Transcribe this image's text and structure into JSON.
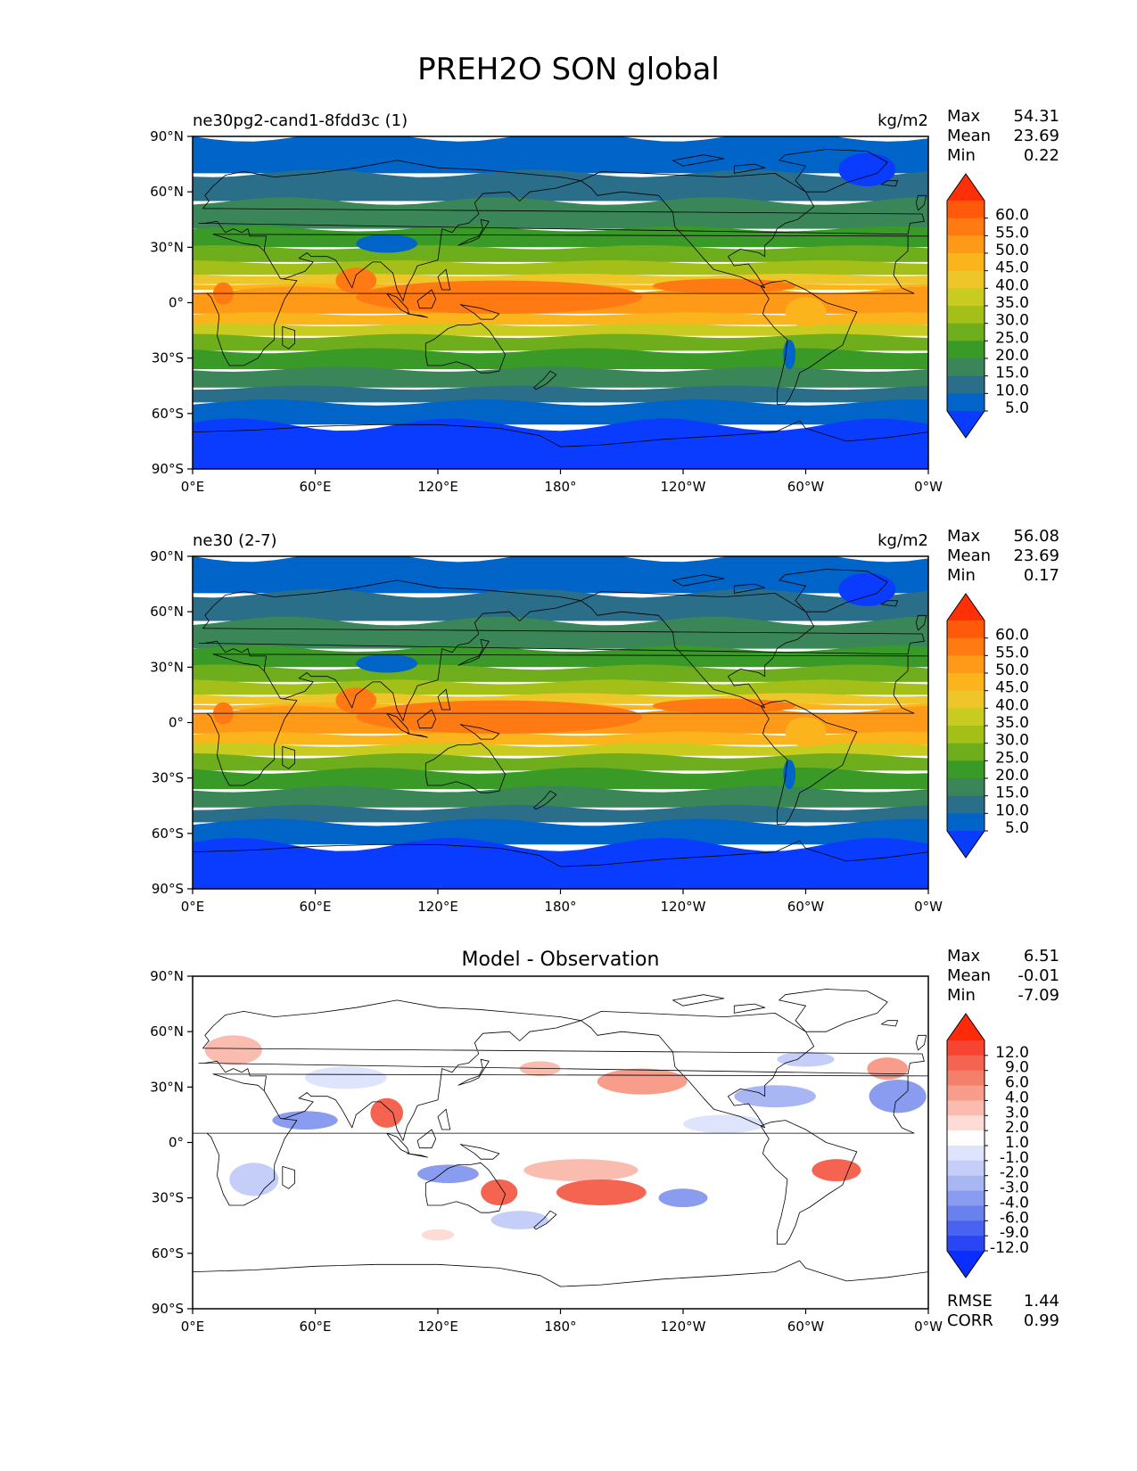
{
  "title": "PREH2O SON global",
  "x_ticks": [
    "0°E",
    "60°E",
    "120°E",
    "180°",
    "120°W",
    "60°W",
    "0°W"
  ],
  "y_ticks": [
    "90°N",
    "60°N",
    "30°N",
    "0°",
    "30°S",
    "60°S",
    "90°S"
  ],
  "panels": [
    {
      "name": "test-panel",
      "label": "ne30pg2-cand1-8fdd3c (1)",
      "units": "kg/m2",
      "center_title": "",
      "stats": [
        {
          "label": "Max",
          "value": "54.31"
        },
        {
          "label": "Mean",
          "value": "23.69"
        },
        {
          "label": "Min",
          "value": "0.22"
        }
      ],
      "colorbar_ticks": [
        "60.0",
        "55.0",
        "50.0",
        "45.0",
        "40.0",
        "35.0",
        "30.0",
        "25.0",
        "20.0",
        "15.0",
        "10.0",
        "5.0"
      ],
      "colorbar_colors": [
        "#ff3008",
        "#ff5a0a",
        "#ff7a12",
        "#ff9a18",
        "#fbb41c",
        "#eec62a",
        "#c8cc20",
        "#a4c018",
        "#6eae1c",
        "#3a9a28",
        "#3a8658",
        "#2a6e8a",
        "#0064c8",
        "#0a3cff"
      ],
      "footer": []
    },
    {
      "name": "ref-panel",
      "label": "ne30 (2-7)",
      "units": "kg/m2",
      "center_title": "",
      "stats": [
        {
          "label": "Max",
          "value": "56.08"
        },
        {
          "label": "Mean",
          "value": "23.69"
        },
        {
          "label": "Min",
          "value": "0.17"
        }
      ],
      "colorbar_ticks": [
        "60.0",
        "55.0",
        "50.0",
        "45.0",
        "40.0",
        "35.0",
        "30.0",
        "25.0",
        "20.0",
        "15.0",
        "10.0",
        "5.0"
      ],
      "colorbar_colors": [
        "#ff3008",
        "#ff5a0a",
        "#ff7a12",
        "#ff9a18",
        "#fbb41c",
        "#eec62a",
        "#c8cc20",
        "#a4c018",
        "#6eae1c",
        "#3a9a28",
        "#3a8658",
        "#2a6e8a",
        "#0064c8",
        "#0a3cff"
      ],
      "footer": []
    },
    {
      "name": "diff-panel",
      "label": "",
      "units": "",
      "center_title": "Model - Observation",
      "stats": [
        {
          "label": "Max",
          "value": "6.51"
        },
        {
          "label": "Mean",
          "value": "-0.01"
        },
        {
          "label": "Min",
          "value": "-7.09"
        }
      ],
      "colorbar_ticks": [
        "12.0",
        "9.0",
        "6.0",
        "4.0",
        "3.0",
        "2.0",
        "1.0",
        "-1.0",
        "-2.0",
        "-3.0",
        "-4.0",
        "-6.0",
        "-9.0",
        "-12.0"
      ],
      "colorbar_colors": [
        "#ff2a0a",
        "#f84432",
        "#f46450",
        "#f4806c",
        "#f89c8c",
        "#fbbcb0",
        "#fcdcd4",
        "#ffffff",
        "#dde4fb",
        "#c4cef8",
        "#a8b6f4",
        "#8a9cef",
        "#6a80ec",
        "#4a62f0",
        "#2a46f4",
        "#0a2eff"
      ],
      "footer": [
        {
          "label": "RMSE",
          "value": "1.44"
        },
        {
          "label": "CORR",
          "value": "0.99"
        }
      ]
    }
  ],
  "chart_data": [
    {
      "type": "heatmap",
      "title": "ne30pg2-cand1-8fdd3c (1)",
      "variable": "PREH2O",
      "season": "SON",
      "units": "kg/m2",
      "x_range": [
        0,
        360
      ],
      "y_range": [
        -90,
        90
      ],
      "levels": [
        5,
        10,
        15,
        20,
        25,
        30,
        35,
        40,
        45,
        50,
        55,
        60
      ],
      "stats": {
        "max": 54.31,
        "mean": 23.69,
        "min": 0.22
      },
      "zonal_profile": {
        "lat": [
          -90,
          -75,
          -60,
          -45,
          -30,
          -15,
          0,
          15,
          30,
          45,
          60,
          75,
          90
        ],
        "value": [
          2,
          3,
          8,
          14,
          22,
          35,
          46,
          40,
          28,
          16,
          10,
          7,
          5
        ]
      }
    },
    {
      "type": "heatmap",
      "title": "ne30 (2-7)",
      "variable": "PREH2O",
      "season": "SON",
      "units": "kg/m2",
      "x_range": [
        0,
        360
      ],
      "y_range": [
        -90,
        90
      ],
      "levels": [
        5,
        10,
        15,
        20,
        25,
        30,
        35,
        40,
        45,
        50,
        55,
        60
      ],
      "stats": {
        "max": 56.08,
        "mean": 23.69,
        "min": 0.17
      },
      "zonal_profile": {
        "lat": [
          -90,
          -75,
          -60,
          -45,
          -30,
          -15,
          0,
          15,
          30,
          45,
          60,
          75,
          90
        ],
        "value": [
          2,
          3,
          8,
          14,
          22,
          35,
          47,
          41,
          28,
          16,
          10,
          7,
          5
        ]
      }
    },
    {
      "type": "heatmap",
      "title": "Model - Observation",
      "variable": "PREH2O difference",
      "season": "SON",
      "x_range": [
        0,
        360
      ],
      "y_range": [
        -90,
        90
      ],
      "levels": [
        -12,
        -9,
        -6,
        -4,
        -3,
        -2,
        -1,
        1,
        2,
        3,
        4,
        6,
        9,
        12
      ],
      "stats": {
        "max": 6.51,
        "mean": -0.01,
        "min": -7.09,
        "rmse": 1.44,
        "corr": 0.99
      }
    }
  ]
}
